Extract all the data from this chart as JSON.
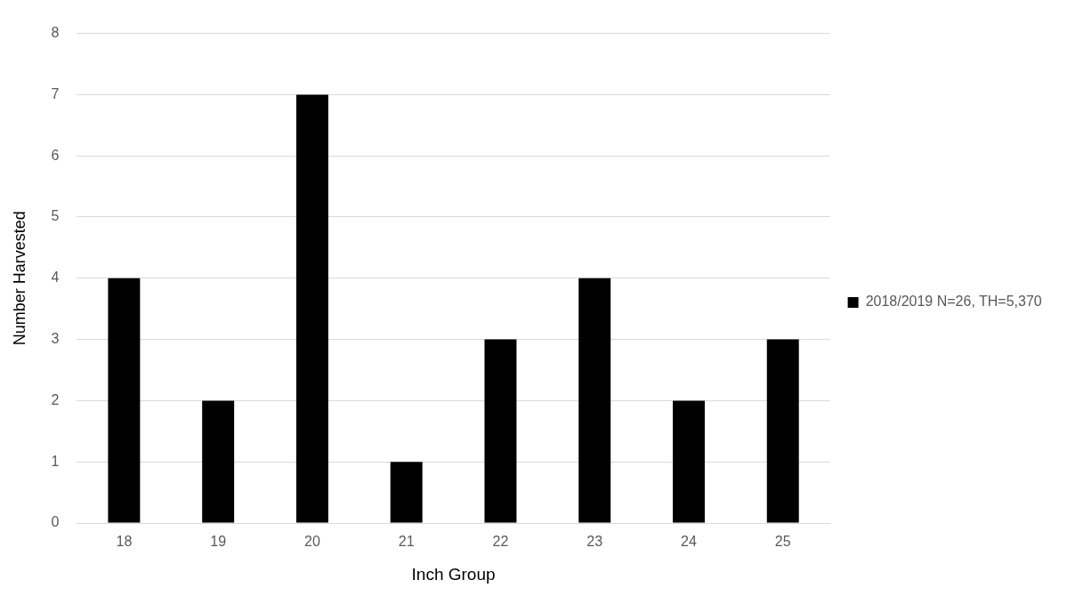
{
  "chart_data": {
    "type": "bar",
    "xlabel": "Inch Group",
    "ylabel": "Number Harvested",
    "categories": [
      "18",
      "19",
      "20",
      "21",
      "22",
      "23",
      "24",
      "25"
    ],
    "series": [
      {
        "name": "2018/2019 N=26, TH=5,370",
        "color": "#000000",
        "values": [
          4,
          2,
          7,
          1,
          3,
          4,
          2,
          3
        ]
      }
    ],
    "ylim": [
      0,
      8
    ],
    "yticks": [
      0,
      1,
      2,
      3,
      4,
      5,
      6,
      7,
      8
    ],
    "grid": "y",
    "legend": "right"
  }
}
